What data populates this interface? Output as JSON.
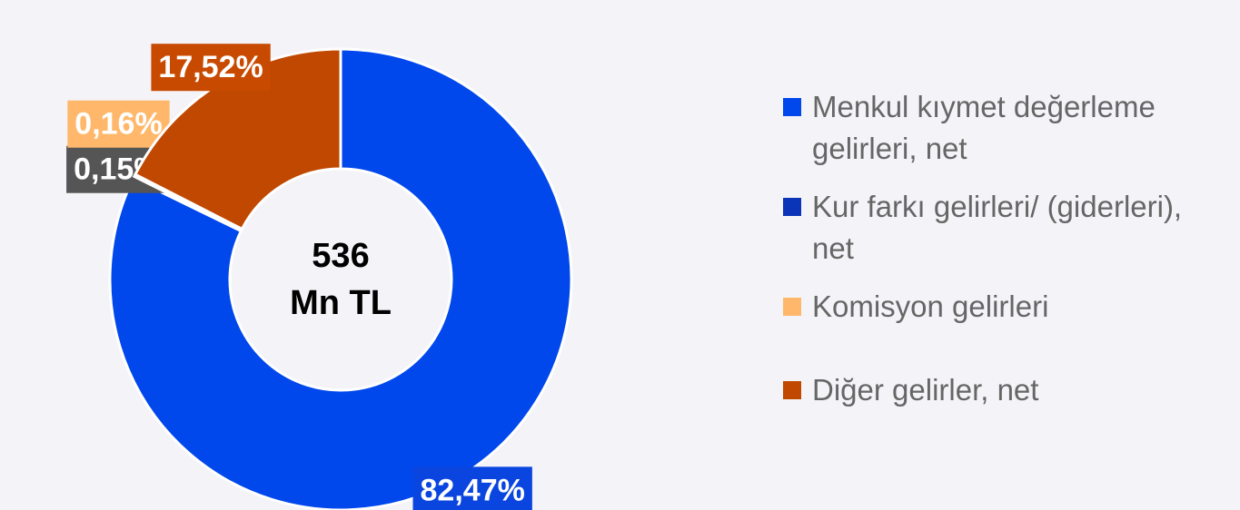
{
  "chart_data": {
    "type": "donut",
    "center_label": [
      "536",
      "Mn TL"
    ],
    "categories": [
      "Menkul kıymet değerleme gelirleri, net",
      "Kur farkı gelirleri/ (giderleri), net",
      "Komisyon gelirleri",
      "Diğer gelirler, net"
    ],
    "values": [
      82.47,
      0.15,
      0.16,
      17.52
    ],
    "value_labels": [
      "82,47%",
      "0,15%",
      "0,16%",
      "17,52%"
    ],
    "colors": [
      "#0047ec",
      "#0a35b8",
      "#ffb86b",
      "#c04800"
    ],
    "label_colors": [
      "#0a45e0",
      "#555555",
      "#ffb86b",
      "#c84a00"
    ],
    "legend": "right"
  }
}
